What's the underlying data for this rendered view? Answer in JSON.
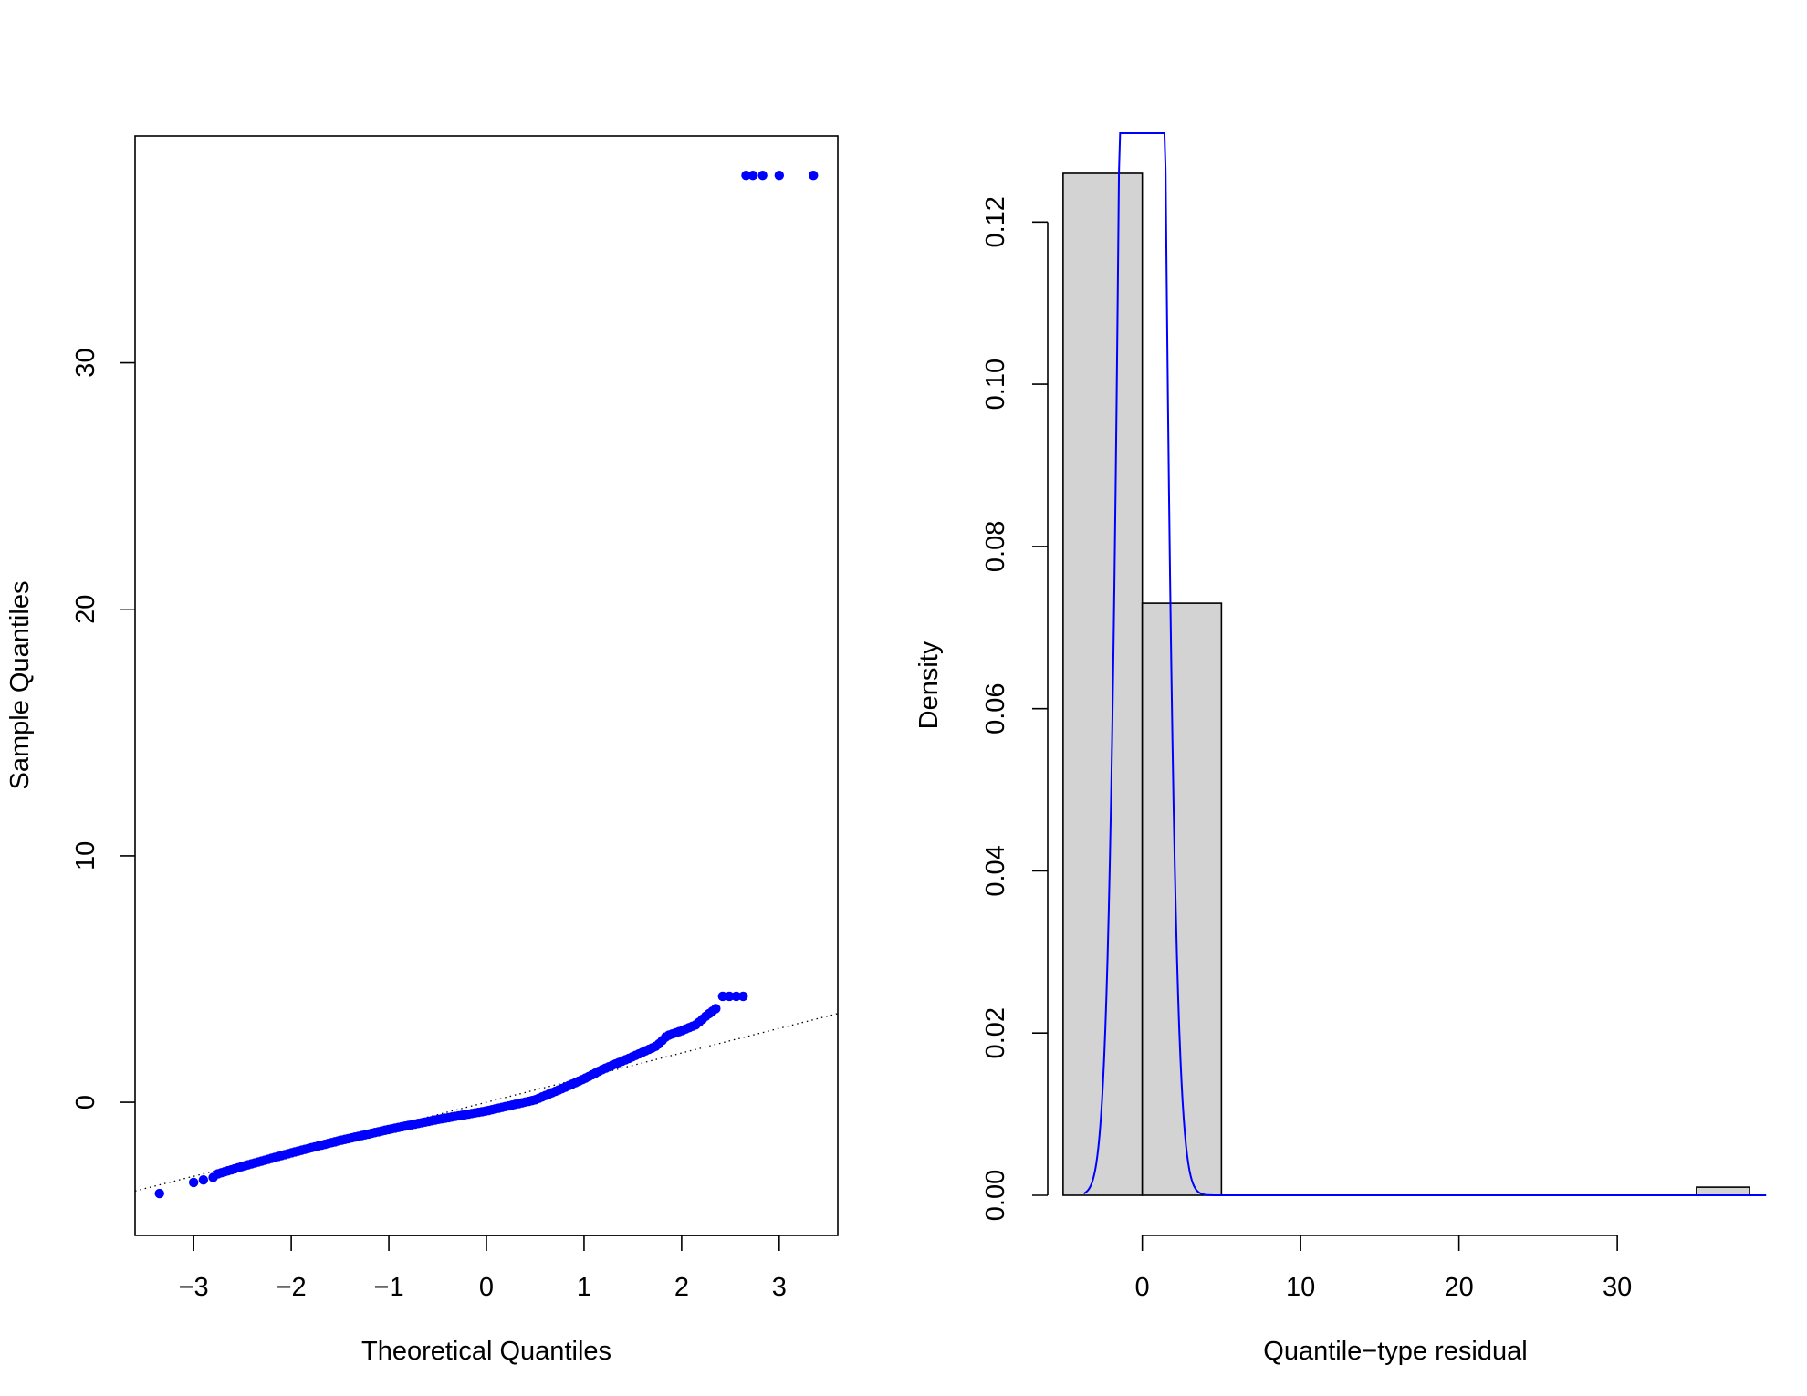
{
  "chart_data": [
    {
      "type": "scatter",
      "title": "",
      "xlabel": "Theoretical Quantiles",
      "ylabel": "Sample Quantiles",
      "xlim": [
        -3.6,
        3.6
      ],
      "ylim": [
        -5.4,
        39.2
      ],
      "x_ticks": [
        -3,
        -2,
        -1,
        0,
        1,
        2,
        3
      ],
      "x_tick_labels": [
        "−3",
        "−2",
        "−1",
        "0",
        "1",
        "2",
        "3"
      ],
      "y_ticks": [
        0,
        10,
        20,
        30
      ],
      "y_tick_labels": [
        "0",
        "10",
        "20",
        "30"
      ],
      "grid": false,
      "point_color": "#0000ff",
      "reference_line": {
        "style": "dotted",
        "points": [
          [
            -3.6,
            -3.6
          ],
          [
            3.6,
            3.6
          ]
        ]
      },
      "curve_knots": [
        [
          -2.75,
          -2.9
        ],
        [
          -2.5,
          -2.6
        ],
        [
          -2.0,
          -2.05
        ],
        [
          -1.5,
          -1.55
        ],
        [
          -1.0,
          -1.1
        ],
        [
          -0.5,
          -0.7
        ],
        [
          0.0,
          -0.35
        ],
        [
          0.5,
          0.1
        ],
        [
          0.8,
          0.6
        ],
        [
          1.0,
          0.95
        ],
        [
          1.2,
          1.35
        ],
        [
          1.5,
          1.85
        ],
        [
          1.75,
          2.3
        ],
        [
          1.85,
          2.7
        ],
        [
          2.0,
          2.9
        ],
        [
          2.15,
          3.15
        ],
        [
          2.25,
          3.5
        ],
        [
          2.35,
          3.8
        ]
      ],
      "curve_point_count": 150,
      "points": [
        [
          -3.35,
          -3.7
        ],
        [
          -3.0,
          -3.25
        ],
        [
          -2.9,
          -3.15
        ],
        [
          -2.8,
          -3.05
        ],
        [
          2.42,
          4.3
        ],
        [
          2.49,
          4.3
        ],
        [
          2.56,
          4.3
        ],
        [
          2.63,
          4.3
        ],
        [
          2.66,
          37.6
        ],
        [
          2.73,
          37.6
        ],
        [
          2.83,
          37.6
        ],
        [
          3.0,
          37.6
        ],
        [
          3.35,
          37.6
        ]
      ]
    },
    {
      "type": "histogram",
      "title": "",
      "xlabel": "Quantile−type residual",
      "ylabel": "Density",
      "xlim": [
        -5.8,
        39.4
      ],
      "ylim": [
        0,
        0.131
      ],
      "x_ticks": [
        0,
        10,
        20,
        30
      ],
      "x_tick_labels": [
        "0",
        "10",
        "20",
        "30"
      ],
      "y_ticks": [
        0,
        0.02,
        0.04,
        0.06,
        0.08,
        0.1,
        0.12
      ],
      "y_tick_labels": [
        "0.00",
        "0.02",
        "0.04",
        "0.06",
        "0.08",
        "0.10",
        "0.12"
      ],
      "grid": false,
      "bar_fill": "#d3d3d3",
      "curve_color": "#0000ff",
      "bins": [
        {
          "x0": -5,
          "x1": 0,
          "density": 0.126
        },
        {
          "x0": 0,
          "x1": 5,
          "density": 0.073
        },
        {
          "x0": 5,
          "x1": 10,
          "density": 0.0
        },
        {
          "x0": 10,
          "x1": 15,
          "density": 0.0
        },
        {
          "x0": 15,
          "x1": 20,
          "density": 0.0
        },
        {
          "x0": 20,
          "x1": 25,
          "density": 0.0
        },
        {
          "x0": 25,
          "x1": 30,
          "density": 0.0
        },
        {
          "x0": 30,
          "x1": 35,
          "density": 0.0
        },
        {
          "x0": 35,
          "x1": 40,
          "density": 0.001
        }
      ],
      "density_curve": {
        "mean": 0.0,
        "sd": 0.95,
        "x_from": -3.7,
        "x_to": 39.4
      }
    }
  ]
}
